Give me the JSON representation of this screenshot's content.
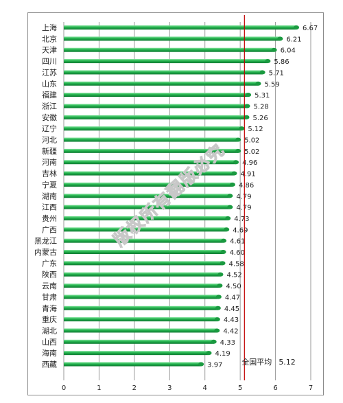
{
  "chart_data": {
    "type": "bar",
    "orientation": "horizontal",
    "title": "",
    "xlabel": "",
    "ylabel": "",
    "xlim": [
      0,
      7
    ],
    "x_ticks": [
      0,
      1,
      2,
      3,
      4,
      5,
      6,
      7
    ],
    "grid": "vertical",
    "bar_color": "#22b14c",
    "reference_line": {
      "value": 5.12,
      "label": "全国平均",
      "value_label": "5.12",
      "color": "#c00000"
    },
    "categories": [
      "上海",
      "北京",
      "天津",
      "四川",
      "江苏",
      "山东",
      "福建",
      "浙江",
      "安徽",
      "辽宁",
      "河北",
      "新疆",
      "河南",
      "吉林",
      "宁夏",
      "湖南",
      "江西",
      "贵州",
      "广西",
      "黑龙江",
      "内蒙古",
      "广东",
      "陕西",
      "云南",
      "甘肃",
      "青海",
      "重庆",
      "湖北",
      "山西",
      "海南",
      "西藏"
    ],
    "values": [
      6.67,
      6.21,
      6.04,
      5.86,
      5.71,
      5.59,
      5.31,
      5.28,
      5.26,
      5.12,
      5.02,
      5.02,
      4.96,
      4.91,
      4.86,
      4.79,
      4.79,
      4.73,
      4.69,
      4.61,
      4.6,
      4.58,
      4.52,
      4.5,
      4.47,
      4.45,
      4.43,
      4.42,
      4.33,
      4.19,
      3.97
    ],
    "value_labels": [
      "6.67",
      "6.21",
      "6.04",
      "5.86",
      "5.71",
      "5.59",
      "5.31",
      "5.28",
      "5.26",
      "5.12",
      "5.02",
      "5.02",
      "4.96",
      "4.91",
      "4.86",
      "4.79",
      "4.79",
      "4.73",
      "4.69",
      "4.61",
      "4.60",
      "4.58",
      "4.52",
      "4.50",
      "4.47",
      "4.45",
      "4.43",
      "4.42",
      "4.33",
      "4.19",
      "3.97"
    ]
  },
  "watermark": {
    "text": "版权所有翻版必究"
  }
}
